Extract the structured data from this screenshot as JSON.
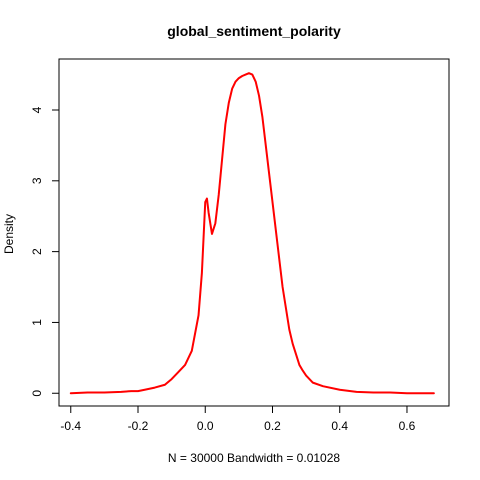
{
  "chart_data": {
    "type": "line",
    "title": "global_sentiment_polarity",
    "xlabel": "N = 30000   Bandwidth = 0.01028",
    "ylabel": "Density",
    "xlim": [
      -0.435,
      0.725
    ],
    "ylim": [
      -0.18,
      4.72
    ],
    "grid": false,
    "legend": "none",
    "x_ticks": [
      "-0.4",
      "-0.2",
      "0.0",
      "0.2",
      "0.4",
      "0.6"
    ],
    "y_ticks": [
      "0",
      "1",
      "2",
      "3",
      "4"
    ],
    "series": [
      {
        "color": "#ff0000",
        "x": [
          -0.4,
          -0.35,
          -0.3,
          -0.25,
          -0.22,
          -0.2,
          -0.18,
          -0.15,
          -0.12,
          -0.1,
          -0.08,
          -0.06,
          -0.04,
          -0.02,
          -0.01,
          0.0,
          0.005,
          0.01,
          0.02,
          0.03,
          0.04,
          0.05,
          0.06,
          0.07,
          0.08,
          0.09,
          0.1,
          0.11,
          0.12,
          0.13,
          0.14,
          0.15,
          0.16,
          0.17,
          0.18,
          0.19,
          0.2,
          0.21,
          0.22,
          0.23,
          0.24,
          0.25,
          0.26,
          0.27,
          0.28,
          0.29,
          0.3,
          0.32,
          0.35,
          0.4,
          0.45,
          0.5,
          0.55,
          0.6,
          0.65,
          0.68
        ],
        "y": [
          0.0,
          0.01,
          0.01,
          0.02,
          0.03,
          0.03,
          0.05,
          0.08,
          0.12,
          0.2,
          0.3,
          0.4,
          0.6,
          1.1,
          1.7,
          2.7,
          2.75,
          2.55,
          2.25,
          2.4,
          2.8,
          3.3,
          3.8,
          4.1,
          4.3,
          4.4,
          4.45,
          4.48,
          4.5,
          4.52,
          4.5,
          4.4,
          4.2,
          3.9,
          3.5,
          3.1,
          2.7,
          2.3,
          1.9,
          1.5,
          1.2,
          0.9,
          0.7,
          0.55,
          0.4,
          0.32,
          0.25,
          0.15,
          0.1,
          0.05,
          0.02,
          0.01,
          0.01,
          0.0,
          0.0,
          0.0
        ]
      }
    ]
  }
}
